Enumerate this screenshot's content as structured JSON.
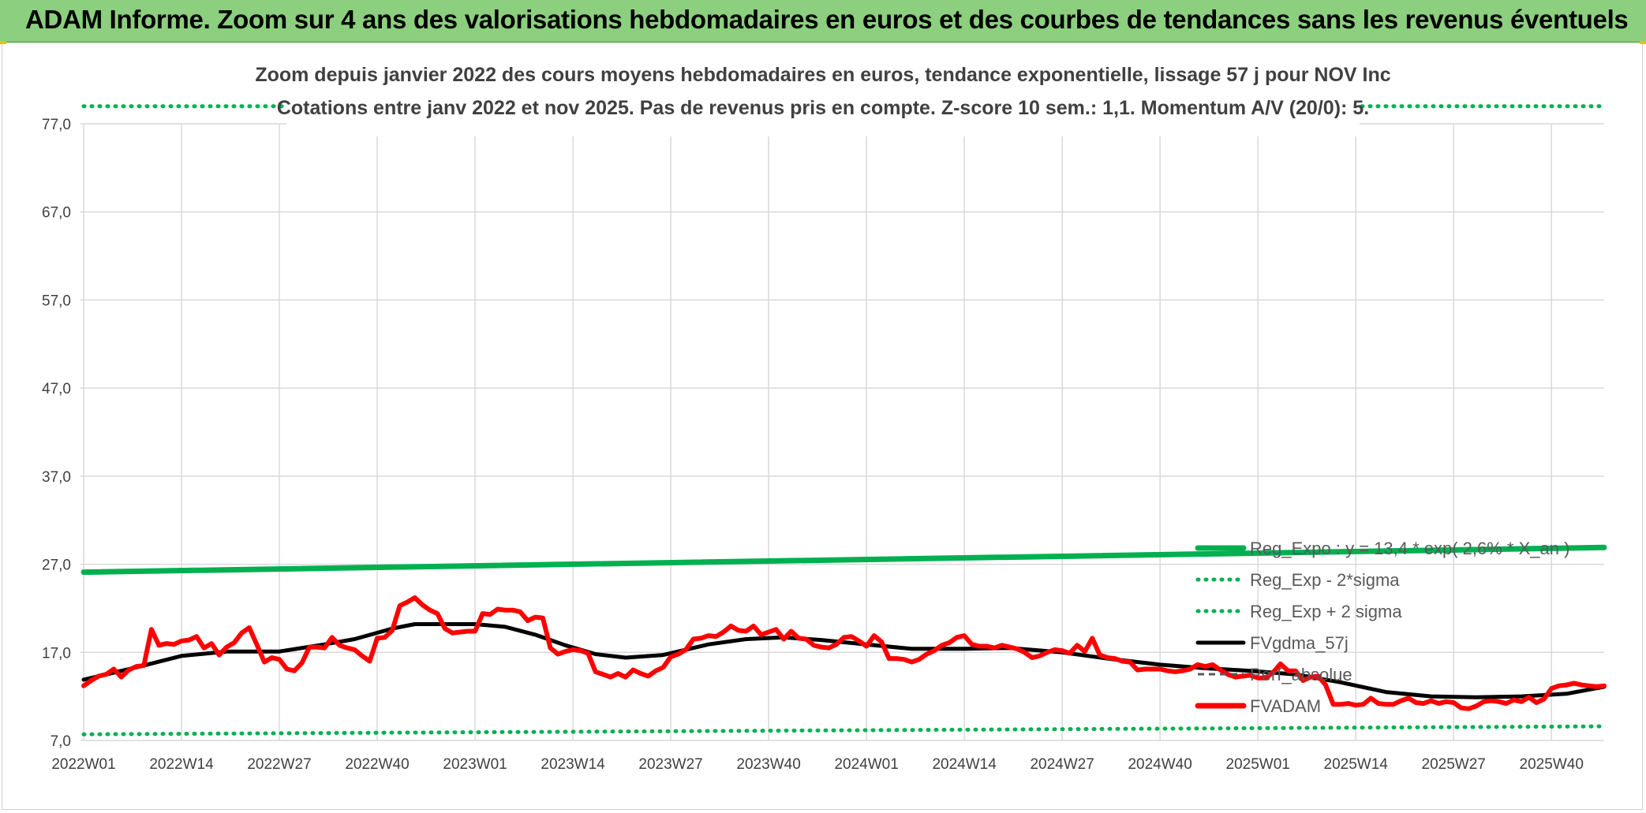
{
  "header": {
    "title": "ADAM Informe. Zoom sur 4 ans des valorisations hebdomadaires en euros et des courbes de tendances sans les revenus éventuels"
  },
  "colors": {
    "header_bg": "#8ccf7e",
    "reg_expo": "#00b050",
    "fvgdma": "#000000",
    "fvadam": "#ff0000",
    "grid": "#d9d9d9",
    "axis_text": "#404040",
    "title_text": "#404040"
  },
  "chart_data": {
    "type": "line",
    "title": "Zoom depuis janvier 2022 des cours moyens hebdomadaires en euros, tendance exponentielle, lissage 57 j pour NOV Inc",
    "subtitle": "Cotations entre janv 2022 et nov 2025. Pas de revenus pris en compte. Z-score 10 sem.: 1,1. Momentum A/V (20/0): 5.",
    "xlabel": "",
    "ylabel": "",
    "ylim": [
      7,
      77
    ],
    "y_ticks": [
      "7,0",
      "17,0",
      "27,0",
      "37,0",
      "47,0",
      "57,0",
      "67,0",
      "77,0"
    ],
    "x_ticks": [
      "2022W01",
      "2022W14",
      "2022W27",
      "2022W40",
      "2023W01",
      "2023W14",
      "2023W27",
      "2023W40",
      "2024W01",
      "2024W14",
      "2024W27",
      "2024W40",
      "2025W01",
      "2025W14",
      "2025W27",
      "2025W40"
    ],
    "x_range": [
      "2022W01",
      "2025W47"
    ],
    "grid": true,
    "legend_position": "right",
    "series": [
      {
        "name": "Reg_Expo : y = 13,4 * exp( 2,6% * X_an )",
        "style": "solid-thick",
        "color": "#00b050",
        "points": [
          [
            "2022W01",
            26.1
          ],
          [
            "2025W47",
            28.9
          ]
        ]
      },
      {
        "name": "Reg_Exp - 2*sigma",
        "style": "dotted",
        "color": "#00b050",
        "points": [
          [
            "2022W01",
            7.7
          ],
          [
            "2025W47",
            8.6
          ]
        ]
      },
      {
        "name": "Reg_Exp + 2 sigma",
        "style": "dotted",
        "color": "#00b050",
        "points": [
          [
            "2022W01",
            79.0
          ],
          [
            "2025W47",
            79.0
          ]
        ]
      },
      {
        "name": "FVgdma_57j",
        "style": "solid",
        "color": "#000000",
        "points": [
          [
            "2022W01",
            13.9
          ],
          [
            "2022W08",
            15.3
          ],
          [
            "2022W14",
            16.6
          ],
          [
            "2022W20",
            17.1
          ],
          [
            "2022W27",
            17.1
          ],
          [
            "2022W33",
            17.9
          ],
          [
            "2022W37",
            18.5
          ],
          [
            "2022W42",
            19.7
          ],
          [
            "2022W45",
            20.2
          ],
          [
            "2022W49",
            20.2
          ],
          [
            "2023W01",
            20.2
          ],
          [
            "2023W05",
            19.9
          ],
          [
            "2023W09",
            19.0
          ],
          [
            "2023W13",
            17.8
          ],
          [
            "2023W17",
            16.8
          ],
          [
            "2023W21",
            16.4
          ],
          [
            "2023W26",
            16.7
          ],
          [
            "2023W32",
            17.9
          ],
          [
            "2023W37",
            18.5
          ],
          [
            "2023W42",
            18.7
          ],
          [
            "2023W47",
            18.4
          ],
          [
            "2024W01",
            17.9
          ],
          [
            "2024W07",
            17.4
          ],
          [
            "2024W14",
            17.4
          ],
          [
            "2024W20",
            17.5
          ],
          [
            "2024W27",
            17.0
          ],
          [
            "2024W33",
            16.3
          ],
          [
            "2024W40",
            15.6
          ],
          [
            "2024W46",
            15.2
          ],
          [
            "2024W52",
            14.9
          ],
          [
            "2025W06",
            14.5
          ],
          [
            "2025W12",
            13.6
          ],
          [
            "2025W18",
            12.5
          ],
          [
            "2025W24",
            12.0
          ],
          [
            "2025W30",
            11.9
          ],
          [
            "2025W36",
            12.0
          ],
          [
            "2025W42",
            12.3
          ],
          [
            "2025W47",
            13.1
          ]
        ]
      },
      {
        "name": "Perf_absolue",
        "style": "dashed",
        "color": "#595959",
        "points": []
      },
      {
        "name": "FVADAM",
        "style": "solid-thick",
        "color": "#ff0000",
        "points": [
          [
            "2022W01",
            13.2
          ],
          [
            "2022W02",
            13.8
          ],
          [
            "2022W03",
            14.3
          ],
          [
            "2022W04",
            14.5
          ],
          [
            "2022W05",
            15.1
          ],
          [
            "2022W06",
            14.2
          ],
          [
            "2022W07",
            15.0
          ],
          [
            "2022W08",
            15.4
          ],
          [
            "2022W09",
            15.5
          ],
          [
            "2022W10",
            19.6
          ],
          [
            "2022W11",
            17.8
          ],
          [
            "2022W12",
            18.0
          ],
          [
            "2022W13",
            17.9
          ],
          [
            "2022W14",
            18.3
          ],
          [
            "2022W15",
            18.4
          ],
          [
            "2022W16",
            18.8
          ],
          [
            "2022W17",
            17.5
          ],
          [
            "2022W18",
            18.0
          ],
          [
            "2022W19",
            16.7
          ],
          [
            "2022W20",
            17.6
          ],
          [
            "2022W21",
            18.1
          ],
          [
            "2022W22",
            19.2
          ],
          [
            "2022W23",
            19.8
          ],
          [
            "2022W24",
            17.9
          ],
          [
            "2022W25",
            15.9
          ],
          [
            "2022W26",
            16.4
          ],
          [
            "2022W27",
            16.2
          ],
          [
            "2022W28",
            15.1
          ],
          [
            "2022W29",
            14.9
          ],
          [
            "2022W30",
            15.8
          ],
          [
            "2022W31",
            17.6
          ],
          [
            "2022W32",
            17.6
          ],
          [
            "2022W33",
            17.5
          ],
          [
            "2022W34",
            18.7
          ],
          [
            "2022W35",
            17.8
          ],
          [
            "2022W36",
            17.5
          ],
          [
            "2022W37",
            17.3
          ],
          [
            "2022W38",
            16.6
          ],
          [
            "2022W39",
            16.0
          ],
          [
            "2022W40",
            18.6
          ],
          [
            "2022W41",
            18.7
          ],
          [
            "2022W42",
            19.5
          ],
          [
            "2022W43",
            22.3
          ],
          [
            "2022W44",
            22.7
          ],
          [
            "2022W45",
            23.2
          ],
          [
            "2022W46",
            22.4
          ],
          [
            "2022W47",
            21.8
          ],
          [
            "2022W48",
            21.4
          ],
          [
            "2022W49",
            19.7
          ],
          [
            "2022W50",
            19.2
          ],
          [
            "2022W51",
            19.3
          ],
          [
            "2022W52",
            19.4
          ],
          [
            "2023W01",
            19.4
          ],
          [
            "2023W02",
            21.4
          ],
          [
            "2023W03",
            21.3
          ],
          [
            "2023W04",
            21.9
          ],
          [
            "2023W05",
            21.8
          ],
          [
            "2023W06",
            21.8
          ],
          [
            "2023W07",
            21.6
          ],
          [
            "2023W08",
            20.6
          ],
          [
            "2023W09",
            21.0
          ],
          [
            "2023W10",
            20.9
          ],
          [
            "2023W11",
            17.5
          ],
          [
            "2023W12",
            16.8
          ],
          [
            "2023W13",
            17.1
          ],
          [
            "2023W14",
            17.3
          ],
          [
            "2023W15",
            17.2
          ],
          [
            "2023W16",
            16.9
          ],
          [
            "2023W17",
            14.8
          ],
          [
            "2023W18",
            14.5
          ],
          [
            "2023W19",
            14.2
          ],
          [
            "2023W20",
            14.6
          ],
          [
            "2023W21",
            14.2
          ],
          [
            "2023W22",
            15.0
          ],
          [
            "2023W23",
            14.6
          ],
          [
            "2023W24",
            14.3
          ],
          [
            "2023W25",
            14.9
          ],
          [
            "2023W26",
            15.3
          ],
          [
            "2023W27",
            16.5
          ],
          [
            "2023W28",
            16.8
          ],
          [
            "2023W29",
            17.3
          ],
          [
            "2023W30",
            18.5
          ],
          [
            "2023W31",
            18.6
          ],
          [
            "2023W32",
            18.9
          ],
          [
            "2023W33",
            18.8
          ],
          [
            "2023W34",
            19.3
          ],
          [
            "2023W35",
            20.0
          ],
          [
            "2023W36",
            19.5
          ],
          [
            "2023W37",
            19.4
          ],
          [
            "2023W38",
            20.0
          ],
          [
            "2023W39",
            19.0
          ],
          [
            "2023W40",
            19.3
          ],
          [
            "2023W41",
            19.6
          ],
          [
            "2023W42",
            18.5
          ],
          [
            "2023W43",
            19.4
          ],
          [
            "2023W44",
            18.6
          ],
          [
            "2023W45",
            18.5
          ],
          [
            "2023W46",
            17.8
          ],
          [
            "2023W47",
            17.6
          ],
          [
            "2023W48",
            17.5
          ],
          [
            "2023W49",
            17.9
          ],
          [
            "2023W50",
            18.7
          ],
          [
            "2023W51",
            18.8
          ],
          [
            "2023W52",
            18.3
          ],
          [
            "2024W01",
            17.7
          ],
          [
            "2024W02",
            18.9
          ],
          [
            "2024W03",
            18.2
          ],
          [
            "2024W04",
            16.3
          ],
          [
            "2024W05",
            16.3
          ],
          [
            "2024W06",
            16.2
          ],
          [
            "2024W07",
            15.9
          ],
          [
            "2024W08",
            16.2
          ],
          [
            "2024W09",
            16.8
          ],
          [
            "2024W10",
            17.2
          ],
          [
            "2024W11",
            17.8
          ],
          [
            "2024W12",
            18.1
          ],
          [
            "2024W13",
            18.7
          ],
          [
            "2024W14",
            18.9
          ],
          [
            "2024W15",
            17.9
          ],
          [
            "2024W16",
            17.7
          ],
          [
            "2024W17",
            17.7
          ],
          [
            "2024W18",
            17.5
          ],
          [
            "2024W19",
            17.8
          ],
          [
            "2024W20",
            17.6
          ],
          [
            "2024W21",
            17.4
          ],
          [
            "2024W22",
            17.0
          ],
          [
            "2024W23",
            16.4
          ],
          [
            "2024W24",
            16.6
          ],
          [
            "2024W25",
            17.0
          ],
          [
            "2024W26",
            17.3
          ],
          [
            "2024W27",
            17.2
          ],
          [
            "2024W28",
            16.9
          ],
          [
            "2024W29",
            17.8
          ],
          [
            "2024W30",
            17.1
          ],
          [
            "2024W31",
            18.6
          ],
          [
            "2024W32",
            16.7
          ],
          [
            "2024W33",
            16.4
          ],
          [
            "2024W34",
            16.3
          ],
          [
            "2024W35",
            16.0
          ],
          [
            "2024W36",
            15.9
          ],
          [
            "2024W37",
            15.0
          ],
          [
            "2024W38",
            15.1
          ],
          [
            "2024W39",
            15.1
          ],
          [
            "2024W40",
            15.1
          ],
          [
            "2024W41",
            14.9
          ],
          [
            "2024W42",
            14.8
          ],
          [
            "2024W43",
            14.9
          ],
          [
            "2024W44",
            15.1
          ],
          [
            "2024W45",
            15.6
          ],
          [
            "2024W46",
            15.4
          ],
          [
            "2024W47",
            15.6
          ],
          [
            "2024W48",
            15.0
          ],
          [
            "2024W49",
            14.5
          ],
          [
            "2024W50",
            14.2
          ],
          [
            "2024W51",
            14.3
          ],
          [
            "2024W52",
            14.4
          ],
          [
            "2025W01",
            14.1
          ],
          [
            "2025W02",
            14.1
          ],
          [
            "2025W03",
            14.7
          ],
          [
            "2025W04",
            15.7
          ],
          [
            "2025W05",
            14.9
          ],
          [
            "2025W06",
            14.9
          ],
          [
            "2025W07",
            13.8
          ],
          [
            "2025W08",
            14.2
          ],
          [
            "2025W09",
            14.3
          ],
          [
            "2025W10",
            13.3
          ],
          [
            "2025W11",
            11.1
          ],
          [
            "2025W12",
            11.1
          ],
          [
            "2025W13",
            11.2
          ],
          [
            "2025W14",
            11.0
          ],
          [
            "2025W15",
            11.1
          ],
          [
            "2025W16",
            11.8
          ],
          [
            "2025W17",
            11.2
          ],
          [
            "2025W18",
            11.1
          ],
          [
            "2025W19",
            11.1
          ],
          [
            "2025W20",
            11.5
          ],
          [
            "2025W21",
            11.8
          ],
          [
            "2025W22",
            11.3
          ],
          [
            "2025W23",
            11.2
          ],
          [
            "2025W24",
            11.5
          ],
          [
            "2025W25",
            11.2
          ],
          [
            "2025W26",
            11.4
          ],
          [
            "2025W27",
            11.3
          ],
          [
            "2025W28",
            10.7
          ],
          [
            "2025W29",
            10.6
          ],
          [
            "2025W30",
            10.9
          ],
          [
            "2025W31",
            11.4
          ],
          [
            "2025W32",
            11.5
          ],
          [
            "2025W33",
            11.4
          ],
          [
            "2025W34",
            11.2
          ],
          [
            "2025W35",
            11.6
          ],
          [
            "2025W36",
            11.4
          ],
          [
            "2025W37",
            11.9
          ],
          [
            "2025W38",
            11.3
          ],
          [
            "2025W39",
            11.7
          ],
          [
            "2025W40",
            12.9
          ],
          [
            "2025W41",
            13.2
          ],
          [
            "2025W42",
            13.3
          ],
          [
            "2025W43",
            13.5
          ],
          [
            "2025W44",
            13.3
          ],
          [
            "2025W45",
            13.2
          ],
          [
            "2025W46",
            13.1
          ],
          [
            "2025W47",
            13.2
          ]
        ]
      }
    ]
  }
}
